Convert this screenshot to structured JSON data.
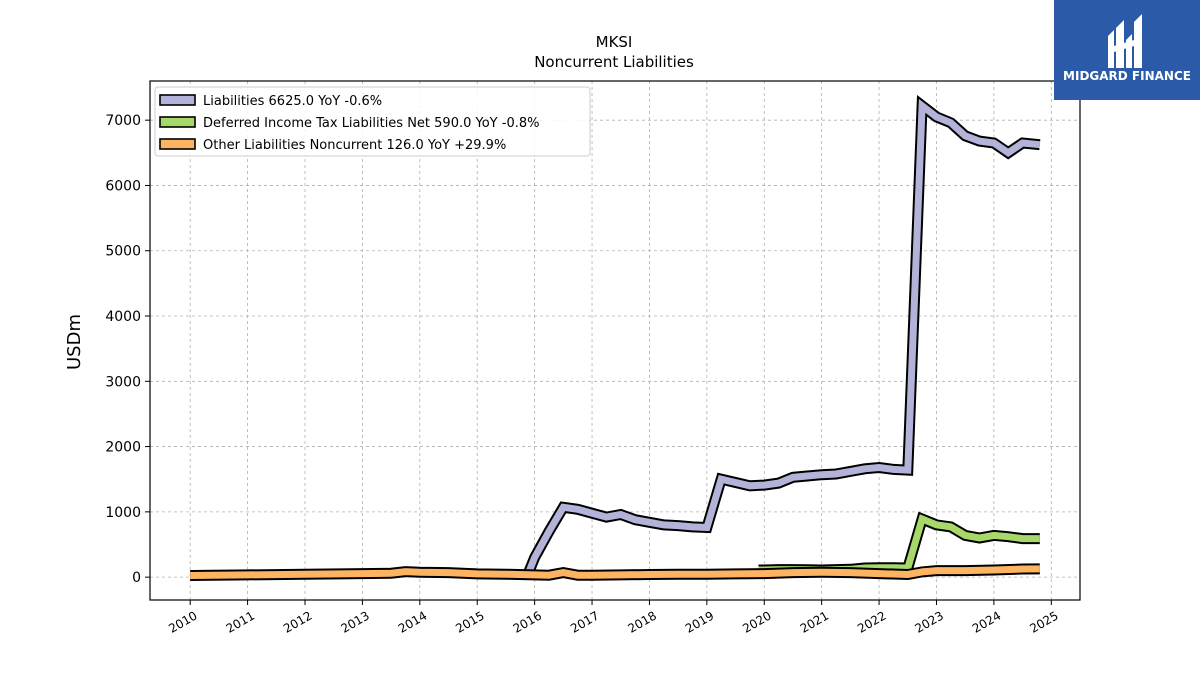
{
  "brand": {
    "name": "MIDGARD FINANCE",
    "logo_icon": "midgard-logo-icon",
    "background_color": "#2b5aa8"
  },
  "chart_data": {
    "type": "line",
    "title": "MKSI",
    "subtitle": "Noncurrent  Liabilities",
    "xlabel": "",
    "ylabel": "USDm",
    "xlim": [
      2009.3,
      2025.5
    ],
    "ylim": [
      -350,
      7600
    ],
    "grid": true,
    "legend_position": "top-left",
    "x_ticks": [
      2010,
      2011,
      2012,
      2013,
      2014,
      2015,
      2016,
      2017,
      2018,
      2019,
      2020,
      2021,
      2022,
      2023,
      2024,
      2025
    ],
    "x_tick_labels": [
      "2010",
      "2011",
      "2012",
      "2013",
      "2014",
      "2015",
      "2016",
      "2017",
      "2018",
      "2019",
      "2020",
      "2021",
      "2022",
      "2023",
      "2024",
      "2025"
    ],
    "y_ticks": [
      0,
      1000,
      2000,
      3000,
      4000,
      5000,
      6000,
      7000
    ],
    "y_tick_labels": [
      "0",
      "1000",
      "2000",
      "3000",
      "4000",
      "5000",
      "6000",
      "7000"
    ],
    "series": [
      {
        "name": "Liabilities  6625.0 YoY -0.6%",
        "color": "#b3b3d9",
        "x": [
          2015.9,
          2016.0,
          2016.25,
          2016.5,
          2016.75,
          2017.0,
          2017.25,
          2017.5,
          2017.75,
          2018.0,
          2018.25,
          2018.5,
          2018.75,
          2019.0,
          2019.25,
          2019.5,
          2019.75,
          2020.0,
          2020.25,
          2020.5,
          2020.75,
          2021.0,
          2021.25,
          2021.5,
          2021.75,
          2022.0,
          2022.25,
          2022.5,
          2022.75,
          2023.0,
          2023.25,
          2023.5,
          2023.75,
          2024.0,
          2024.25,
          2024.5,
          2024.8
        ],
        "values": [
          80,
          300,
          700,
          1070,
          1040,
          980,
          920,
          960,
          880,
          840,
          800,
          790,
          770,
          760,
          1500,
          1450,
          1400,
          1410,
          1440,
          1530,
          1550,
          1570,
          1580,
          1620,
          1660,
          1680,
          1650,
          1640,
          7220,
          7050,
          6960,
          6760,
          6680,
          6650,
          6500,
          6650,
          6625
        ]
      },
      {
        "name": "Deferred Income Tax Liabilities Net  590.0 YoY -0.8%",
        "color": "#a6d96a",
        "x": [
          2019.9,
          2020.0,
          2020.25,
          2020.5,
          2020.75,
          2021.0,
          2021.25,
          2021.5,
          2021.75,
          2022.0,
          2022.25,
          2022.5,
          2022.75,
          2023.0,
          2023.25,
          2023.5,
          2023.75,
          2024.0,
          2024.25,
          2024.5,
          2024.8
        ],
        "values": [
          110,
          110,
          115,
          115,
          112,
          110,
          115,
          120,
          140,
          145,
          145,
          140,
          890,
          800,
          770,
          640,
          600,
          640,
          620,
          590,
          590
        ]
      },
      {
        "name": "Other Liabilities Noncurrent  126.0 YoY +29.9%",
        "color": "#fdb462",
        "x": [
          2010.0,
          2011.0,
          2012.0,
          2013.0,
          2013.5,
          2013.75,
          2014.0,
          2014.5,
          2015.0,
          2015.5,
          2016.0,
          2016.25,
          2016.5,
          2016.75,
          2017.0,
          2017.5,
          2018.0,
          2018.5,
          2019.0,
          2019.5,
          2020.0,
          2020.5,
          2021.0,
          2021.5,
          2022.0,
          2022.5,
          2022.75,
          2023.0,
          2023.5,
          2024.0,
          2024.5,
          2024.8
        ],
        "values": [
          25,
          35,
          45,
          55,
          60,
          85,
          75,
          70,
          50,
          45,
          35,
          30,
          70,
          30,
          30,
          35,
          40,
          45,
          45,
          50,
          55,
          70,
          75,
          70,
          55,
          40,
          80,
          100,
          100,
          110,
          125,
          126
        ]
      }
    ]
  }
}
